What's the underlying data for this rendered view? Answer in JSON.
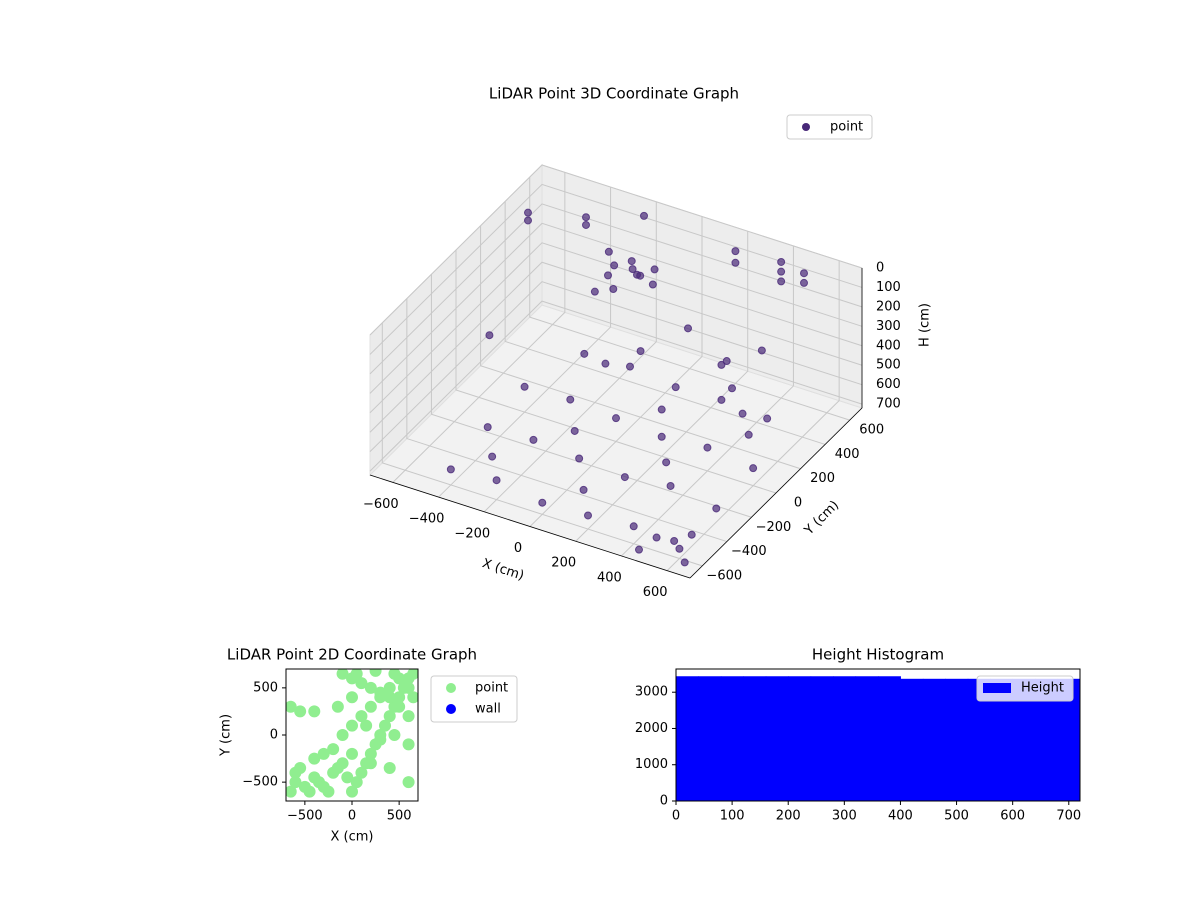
{
  "chart_data": [
    {
      "type": "scatter3d",
      "title": "LiDAR Point 3D Coordinate Graph",
      "xlabel": "X (cm)",
      "ylabel": "Y (cm)",
      "zlabel": "H (cm)",
      "xlim": [
        -700,
        700
      ],
      "ylim": [
        -700,
        700
      ],
      "zlim": [
        0,
        720
      ],
      "zinvert": true,
      "grid": true,
      "legend": "upper right",
      "xticks": [
        {
          "value": -600,
          "label": "−600"
        },
        {
          "value": -400,
          "label": "−400"
        },
        {
          "value": -200,
          "label": "−200"
        },
        0,
        200,
        400,
        600
      ],
      "yticks": [
        {
          "value": -600,
          "label": "−600"
        },
        {
          "value": -400,
          "label": "−400"
        },
        {
          "value": -200,
          "label": "−200"
        },
        0,
        200,
        400,
        600
      ],
      "zticks": [
        0,
        100,
        200,
        300,
        400,
        500,
        600,
        700
      ],
      "series": [
        {
          "name": "point",
          "color": "#482878",
          "x": [
            -600,
            -600,
            -400,
            -400,
            -200,
            200,
            200,
            400,
            400,
            400,
            500,
            500,
            0,
            -200,
            -500,
            -300,
            -250,
            -200,
            -150,
            -100,
            -250,
            -200,
            -120,
            -180,
            100,
            300,
            400,
            500,
            200,
            -100,
            0,
            450,
            350,
            -400,
            -200,
            0,
            200,
            400,
            600,
            -400,
            -200,
            0,
            200,
            400,
            600,
            -400,
            -200,
            0,
            200,
            400,
            600,
            -300,
            -100,
            100,
            300,
            500,
            -300,
            -100,
            100,
            300,
            500,
            500,
            550,
            600,
            650,
            450
          ],
          "y": [
            400,
            400,
            500,
            500,
            600,
            600,
            600,
            600,
            600,
            600,
            600,
            600,
            300,
            200,
            -100,
            500,
            450,
            500,
            450,
            500,
            400,
            350,
            420,
            470,
            400,
            300,
            200,
            100,
            0,
            100,
            200,
            350,
            250,
            -600,
            -600,
            -600,
            -600,
            -600,
            -600,
            -300,
            -300,
            -300,
            -300,
            -300,
            -300,
            0,
            0,
            0,
            0,
            0,
            0,
            300,
            300,
            300,
            300,
            300,
            -450,
            -150,
            -450,
            -150,
            150,
            -600,
            -550,
            -500,
            -650,
            -650
          ],
          "z": [
            20,
            60,
            30,
            70,
            10,
            40,
            100,
            20,
            70,
            120,
            40,
            90,
            100,
            150,
            300,
            170,
            190,
            180,
            200,
            185,
            210,
            230,
            175,
            195,
            350,
            400,
            420,
            450,
            480,
            420,
            380,
            300,
            330,
            640,
            620,
            660,
            650,
            630,
            670,
            610,
            600,
            620,
            640,
            610,
            650,
            590,
            580,
            600,
            620,
            600,
            630,
            570,
            560,
            590,
            580,
            600,
            630,
            610,
            650,
            620,
            590,
            650,
            680,
            660,
            690,
            700
          ]
        }
      ]
    },
    {
      "type": "scatter",
      "title": "LiDAR Point 2D Coordinate Graph",
      "xlabel": "X (cm)",
      "ylabel": "Y (cm)",
      "xlim": [
        -700,
        700
      ],
      "ylim": [
        -700,
        700
      ],
      "legend": "outside right",
      "xticks": [
        {
          "value": -500,
          "label": "−500"
        },
        0,
        500
      ],
      "yticks": [
        {
          "value": -500,
          "label": "−500"
        },
        0,
        500
      ],
      "series": [
        {
          "name": "point",
          "color": "#90ee90",
          "x": [
            -650,
            -600,
            -500,
            -450,
            -400,
            -350,
            -300,
            -250,
            -200,
            -150,
            -100,
            -50,
            0,
            50,
            100,
            150,
            200,
            250,
            300,
            350,
            400,
            450,
            500,
            550,
            600,
            650,
            -600,
            -550,
            -400,
            -300,
            -200,
            -100,
            0,
            100,
            200,
            300,
            400,
            500,
            600,
            650,
            -100,
            0,
            100,
            200,
            300,
            400,
            500,
            600,
            -650,
            -550,
            -400,
            -150,
            0,
            150,
            300,
            450,
            600,
            0,
            200,
            400,
            600,
            50,
            250,
            450
          ],
          "y": [
            -600,
            -500,
            -550,
            -600,
            -450,
            -500,
            -550,
            -600,
            -400,
            -350,
            -300,
            -450,
            -600,
            -500,
            -400,
            -300,
            -200,
            -100,
            0,
            100,
            200,
            300,
            400,
            500,
            600,
            650,
            -400,
            -350,
            -250,
            -200,
            -150,
            0,
            100,
            200,
            300,
            400,
            500,
            600,
            500,
            400,
            650,
            600,
            550,
            500,
            450,
            400,
            300,
            200,
            300,
            250,
            250,
            300,
            400,
            100,
            -50,
            0,
            -100,
            -200,
            -300,
            -350,
            -500,
            650,
            680,
            650
          ]
        },
        {
          "name": "wall",
          "color": "#0000ff",
          "x": [],
          "y": []
        }
      ]
    },
    {
      "type": "hist",
      "title": "Height Histogram",
      "legend": "upper right",
      "xlim": [
        0,
        720
      ],
      "ylim": [
        0,
        3640
      ],
      "xticks": [
        0,
        100,
        200,
        300,
        400,
        500,
        600,
        700
      ],
      "yticks": [
        0,
        1000,
        2000,
        3000
      ],
      "series": [
        {
          "name": "Height",
          "color": "#0000ff",
          "bins": [
            0,
            40,
            80,
            120,
            160,
            200,
            240,
            280,
            320,
            360,
            400,
            440,
            480,
            520,
            560,
            600,
            640,
            680,
            720
          ],
          "values": [
            3440,
            3440,
            3440,
            3440,
            3440,
            3440,
            3440,
            3440,
            3440,
            3440,
            3370,
            3370,
            3370,
            3370,
            3370,
            3370,
            3370,
            3370
          ]
        }
      ]
    }
  ]
}
